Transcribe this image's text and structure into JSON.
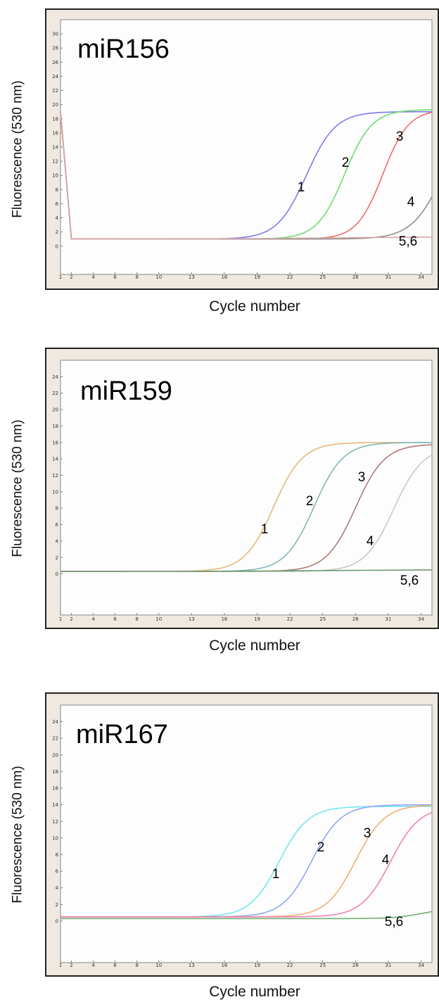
{
  "charts": [
    {
      "title": "miR156",
      "ylabel": "Fluorescence (530 nm)",
      "xlabel": "Cycle number",
      "yticks": [
        "30",
        "28",
        "26",
        "24",
        "22",
        "20",
        "18",
        "16",
        "14",
        "12",
        "10",
        "8",
        "6",
        "4",
        "2",
        "0"
      ],
      "xticks": [
        "1",
        "2",
        "4",
        "6",
        "8",
        "10",
        "13",
        "16",
        "19",
        "22",
        "25",
        "28",
        "31",
        "34"
      ],
      "curve_labels": [
        "1",
        "2",
        "3",
        "4",
        "5,6"
      ],
      "colors": [
        "#7b7bee",
        "#6fdc6f",
        "#f06a6a",
        "#8f8f8f",
        "#d8a5a5"
      ]
    },
    {
      "title": "miR159",
      "ylabel": "Fluorescence (530 nm)",
      "xlabel": "Cycle number",
      "yticks": [
        "24",
        "22",
        "20",
        "18",
        "16",
        "14",
        "12",
        "10",
        "8",
        "6",
        "4",
        "2",
        "0"
      ],
      "xticks": [
        "1",
        "2",
        "4",
        "6",
        "8",
        "10",
        "13",
        "16",
        "19",
        "22",
        "25",
        "28",
        "31",
        "34"
      ],
      "curve_labels": [
        "1",
        "2",
        "3",
        "4",
        "5,6"
      ],
      "colors": [
        "#e8b878",
        "#7fb8b8",
        "#b07a78",
        "#c8c8c8",
        "#6f9a6f"
      ]
    },
    {
      "title": "miR167",
      "ylabel": "Fluorescence (530 nm)",
      "xlabel": "Cycle number",
      "yticks": [
        "24",
        "22",
        "20",
        "18",
        "16",
        "14",
        "12",
        "10",
        "8",
        "6",
        "4",
        "2",
        "0"
      ],
      "xticks": [
        "1",
        "2",
        "4",
        "6",
        "8",
        "10",
        "13",
        "16",
        "19",
        "22",
        "25",
        "28",
        "31",
        "34"
      ],
      "curve_labels": [
        "1",
        "2",
        "3",
        "4",
        "5,6"
      ],
      "colors": [
        "#6fe8f0",
        "#8fa8f0",
        "#f0b070",
        "#f080b8",
        "#70b070"
      ]
    }
  ],
  "chart_data": [
    {
      "type": "line",
      "title": "miR156",
      "xlabel": "Cycle number",
      "ylabel": "Fluorescence (530 nm)",
      "xlim": [
        1,
        35
      ],
      "ylim": [
        -4,
        32
      ],
      "start": [
        {
          "x": 1,
          "y": 19
        },
        {
          "x": 2,
          "y": 1
        }
      ],
      "series": [
        {
          "name": "1",
          "baseline": 1,
          "max": 19,
          "midpoint": 23.5,
          "steepness": 0.75
        },
        {
          "name": "2",
          "baseline": 1,
          "max": 19.3,
          "midpoint": 27,
          "steepness": 0.8
        },
        {
          "name": "3",
          "baseline": 1,
          "max": 19.3,
          "midpoint": 30.5,
          "steepness": 0.85
        },
        {
          "name": "4",
          "baseline": 1,
          "max": 19,
          "midpoint": 36,
          "steepness": 0.7
        },
        {
          "name": "5,6",
          "baseline": 1,
          "max": 1.3,
          "midpoint": 25,
          "steepness": 0.2
        }
      ]
    },
    {
      "type": "line",
      "title": "miR159",
      "xlabel": "Cycle number",
      "ylabel": "Fluorescence (530 nm)",
      "xlim": [
        1,
        35
      ],
      "ylim": [
        -5,
        26
      ],
      "series": [
        {
          "name": "1",
          "baseline": 0.3,
          "max": 16,
          "midpoint": 20.5,
          "steepness": 0.75
        },
        {
          "name": "2",
          "baseline": 0.3,
          "max": 16,
          "midpoint": 24.2,
          "steepness": 0.75
        },
        {
          "name": "3",
          "baseline": 0.3,
          "max": 15.8,
          "midpoint": 28,
          "steepness": 0.75
        },
        {
          "name": "4",
          "baseline": 0.3,
          "max": 15.5,
          "midpoint": 31.5,
          "steepness": 0.75
        },
        {
          "name": "5,6",
          "baseline": 0.3,
          "max": 0.5,
          "midpoint": 25,
          "steepness": 0.2
        }
      ]
    },
    {
      "type": "line",
      "title": "miR167",
      "xlabel": "Cycle number",
      "ylabel": "Fluorescence (530 nm)",
      "xlim": [
        1,
        35
      ],
      "ylim": [
        -5,
        26
      ],
      "series": [
        {
          "name": "1",
          "baseline": 0.5,
          "max": 13.8,
          "midpoint": 21,
          "steepness": 0.75
        },
        {
          "name": "2",
          "baseline": 0.5,
          "max": 14,
          "midpoint": 24,
          "steepness": 0.75
        },
        {
          "name": "3",
          "baseline": 0.5,
          "max": 14,
          "midpoint": 28,
          "steepness": 0.75
        },
        {
          "name": "4",
          "baseline": 0.5,
          "max": 13.8,
          "midpoint": 31.2,
          "steepness": 0.75
        },
        {
          "name": "5,6",
          "baseline": 0.3,
          "max": 1.5,
          "midpoint": 34,
          "steepness": 0.8
        }
      ]
    }
  ]
}
